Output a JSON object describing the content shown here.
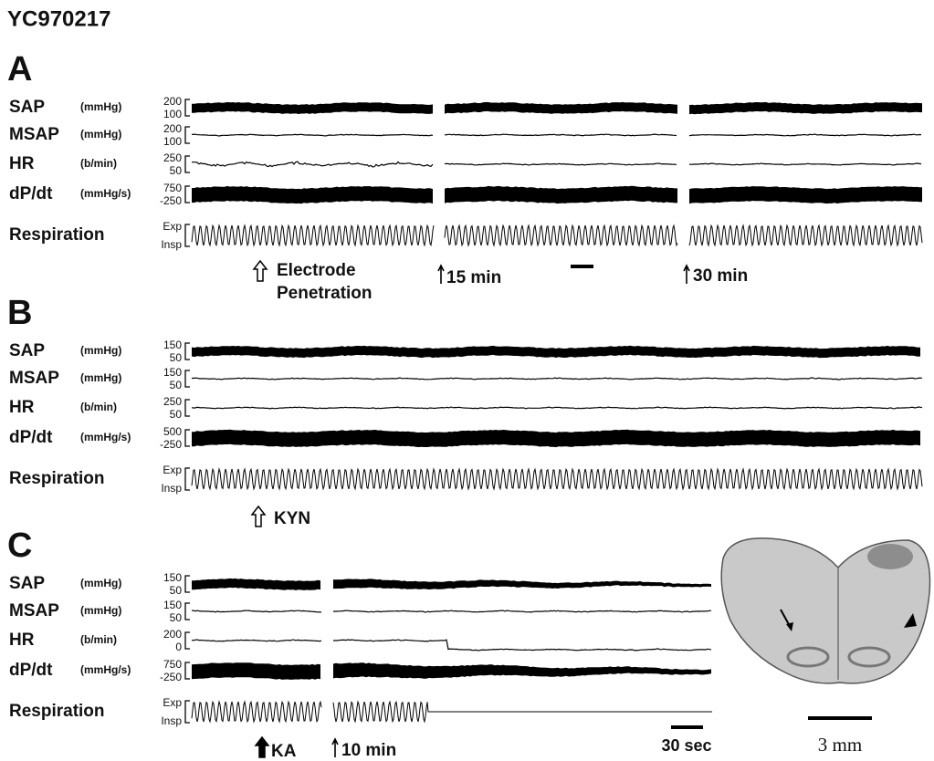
{
  "title": "YC970217",
  "panels": [
    {
      "label": "A",
      "rows": [
        {
          "name": "SAP",
          "unit": "(mmHg)",
          "scale": [
            "200",
            "100"
          ]
        },
        {
          "name": "MSAP",
          "unit": "(mmHg)",
          "scale": [
            "200",
            "100"
          ]
        },
        {
          "name": "HR",
          "unit": "(b/min)",
          "scale": [
            "250",
            "50"
          ]
        },
        {
          "name": "dP/dt",
          "unit": "(mmHg/s)",
          "scale": [
            "750",
            "-250"
          ]
        },
        {
          "name": "Respiration",
          "scale": [
            "Exp",
            "Insp"
          ]
        }
      ],
      "notes": [
        "Electrode",
        "Penetration",
        "15 min",
        "30 min"
      ]
    },
    {
      "label": "B",
      "rows": [
        {
          "name": "SAP",
          "unit": "(mmHg)",
          "scale": [
            "150",
            "50"
          ]
        },
        {
          "name": "MSAP",
          "unit": "(mmHg)",
          "scale": [
            "150",
            "50"
          ]
        },
        {
          "name": "HR",
          "unit": "(b/min)",
          "scale": [
            "250",
            "50"
          ]
        },
        {
          "name": "dP/dt",
          "unit": "(mmHg/s)",
          "scale": [
            "500",
            "-250"
          ]
        },
        {
          "name": "Respiration",
          "scale": [
            "Exp",
            "Insp"
          ]
        }
      ],
      "notes": [
        "KYN"
      ]
    },
    {
      "label": "C",
      "rows": [
        {
          "name": "SAP",
          "unit": "(mmHg)",
          "scale": [
            "150",
            "50"
          ]
        },
        {
          "name": "MSAP",
          "unit": "(mmHg)",
          "scale": [
            "150",
            "50"
          ]
        },
        {
          "name": "HR",
          "unit": "(b/min)",
          "scale": [
            "200",
            "0"
          ]
        },
        {
          "name": "dP/dt",
          "unit": "(mmHg/s)",
          "scale": [
            "750",
            "-250"
          ]
        },
        {
          "name": "Respiration",
          "scale": [
            "Exp",
            "Insp"
          ]
        }
      ],
      "notes": [
        "KA",
        "10 min",
        "30 sec",
        "3 mm"
      ]
    }
  ]
}
